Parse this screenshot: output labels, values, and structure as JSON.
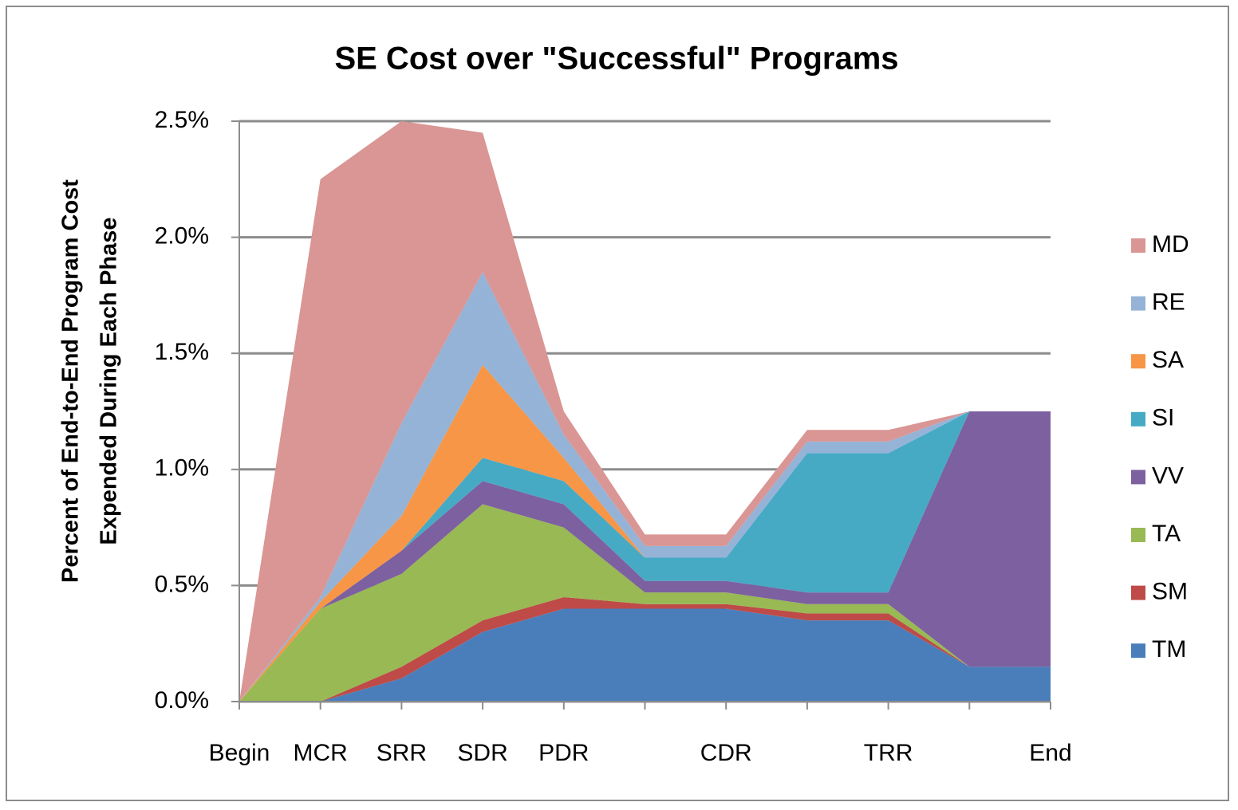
{
  "chart_data": {
    "type": "stacked_area",
    "title": "SE Cost over \"Successful\" Programs",
    "y_label": [
      "Percent of End-to-End Program Cost",
      "Expended During Each Phase"
    ],
    "categories": [
      "Begin",
      "MCR",
      "SRR",
      "SDR",
      "PDR",
      null,
      "CDR",
      null,
      "TRR",
      null,
      "End"
    ],
    "series": [
      {
        "name": "TM",
        "color": "#4a7ebb",
        "values": [
          0,
          0,
          0.1,
          0.3,
          0.4,
          0.4,
          0.4,
          0.35,
          0.35,
          0.15,
          0.15
        ]
      },
      {
        "name": "SM",
        "color": "#be4b48",
        "values": [
          0,
          0,
          0.05,
          0.05,
          0.05,
          0.02,
          0.02,
          0.03,
          0.03,
          0,
          0
        ]
      },
      {
        "name": "TA",
        "color": "#98b954",
        "values": [
          0,
          0.4,
          0.4,
          0.5,
          0.3,
          0.05,
          0.05,
          0.04,
          0.04,
          0,
          0
        ]
      },
      {
        "name": "VV",
        "color": "#7d60a0",
        "values": [
          0,
          0,
          0.1,
          0.1,
          0.1,
          0.05,
          0.05,
          0.05,
          0.05,
          1.1,
          1.1
        ]
      },
      {
        "name": "SI",
        "color": "#46aac5",
        "values": [
          0,
          0,
          0,
          0.1,
          0.1,
          0.1,
          0.1,
          0.6,
          0.6,
          0,
          0
        ]
      },
      {
        "name": "SA",
        "color": "#f79646",
        "values": [
          0,
          0.03,
          0.15,
          0.4,
          0.1,
          0,
          0,
          0,
          0,
          0,
          0
        ]
      },
      {
        "name": "RE",
        "color": "#95b3d7",
        "values": [
          0,
          0.02,
          0.4,
          0.4,
          0.1,
          0.05,
          0.05,
          0.05,
          0.05,
          0,
          0
        ]
      },
      {
        "name": "MD",
        "color": "#d99694",
        "values": [
          0,
          1.8,
          1.3,
          0.6,
          0.1,
          0.05,
          0.05,
          0.05,
          0.05,
          0,
          0
        ]
      }
    ],
    "ylim": [
      0,
      2.5
    ],
    "yticks": [
      {
        "value": 0,
        "label": "0.0%"
      },
      {
        "value": 0.5,
        "label": "0.5%"
      },
      {
        "value": 1,
        "label": "1.0%"
      },
      {
        "value": 1.5,
        "label": "1.5%"
      },
      {
        "value": 2,
        "label": "2.0%"
      },
      {
        "value": 2.5,
        "label": "2.5%"
      }
    ],
    "grid": true,
    "legend": "right"
  }
}
